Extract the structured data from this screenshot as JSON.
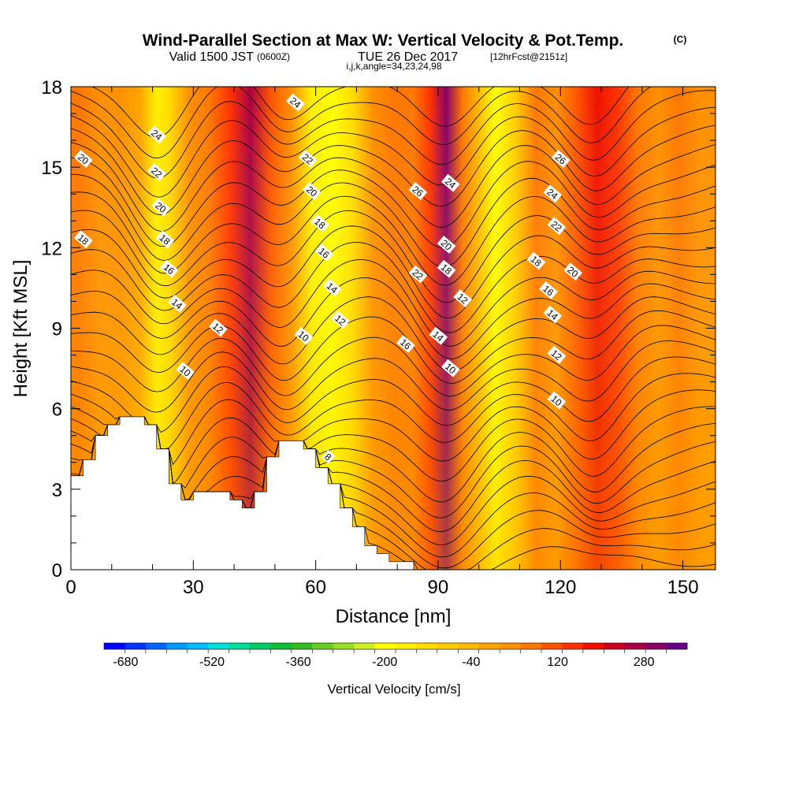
{
  "title": {
    "main": "Wind-Parallel Section at Max W: Vertical Velocity & Pot.Temp.",
    "copyright": "(C)",
    "line2_a": "Valid 1500 JST",
    "line2_b": "(0600Z)",
    "line2_c": "TUE 26 Dec 2017",
    "line2_d": "[12hrFcst@2151z]",
    "line3": "i,j,k,angle=34,23,24,98"
  },
  "chart_data": {
    "type": "heatmap",
    "xlabel": "Distance [nm]",
    "ylabel": "Height [Kft MSL]",
    "xlim": [
      0,
      158
    ],
    "ylim": [
      0,
      18
    ],
    "x_ticks": [
      "0",
      "30",
      "60",
      "90",
      "120",
      "150"
    ],
    "y_ticks": [
      "0",
      "3",
      "6",
      "9",
      "12",
      "15",
      "18"
    ],
    "x_tick_values": [
      0,
      30,
      60,
      90,
      120,
      150
    ],
    "y_tick_values": [
      0,
      3,
      6,
      9,
      12,
      15,
      18
    ],
    "colorbar": {
      "title": "Vertical Velocity [cm/s]",
      "labels": [
        "-680",
        "-520",
        "-360",
        "-200",
        "-40",
        "120",
        "280"
      ],
      "colors": [
        "#0000ff",
        "#0033ff",
        "#0066ff",
        "#0099ff",
        "#00bbff",
        "#00dddd",
        "#00dd99",
        "#00cc66",
        "#11bb33",
        "#33bb22",
        "#66cc22",
        "#99dd22",
        "#ccee22",
        "#ffff00",
        "#ffee00",
        "#ffdd00",
        "#ffcc00",
        "#ffbb00",
        "#ffa500",
        "#ff9000",
        "#ff7700",
        "#ff5500",
        "#ff3300",
        "#ee1100",
        "#cc0022",
        "#aa0044",
        "#880066",
        "#660088"
      ]
    },
    "velocity_columns": [
      {
        "x": 2,
        "value": 60
      },
      {
        "x": 7,
        "value": 20
      },
      {
        "x": 12,
        "value": 40
      },
      {
        "x": 17,
        "value": 0
      },
      {
        "x": 21,
        "value": -180
      },
      {
        "x": 24,
        "value": -120
      },
      {
        "x": 29,
        "value": 40
      },
      {
        "x": 34,
        "value": 80
      },
      {
        "x": 39,
        "value": 160
      },
      {
        "x": 44,
        "value": 260
      },
      {
        "x": 49,
        "value": 120
      },
      {
        "x": 54,
        "value": 20
      },
      {
        "x": 59,
        "value": -160
      },
      {
        "x": 64,
        "value": -200
      },
      {
        "x": 69,
        "value": -120
      },
      {
        "x": 74,
        "value": 20
      },
      {
        "x": 79,
        "value": 60
      },
      {
        "x": 84,
        "value": 80
      },
      {
        "x": 88,
        "value": 160
      },
      {
        "x": 92,
        "value": 300
      },
      {
        "x": 96,
        "value": 80
      },
      {
        "x": 100,
        "value": -40
      },
      {
        "x": 104,
        "value": -200
      },
      {
        "x": 109,
        "value": -80
      },
      {
        "x": 114,
        "value": 60
      },
      {
        "x": 119,
        "value": 20
      },
      {
        "x": 124,
        "value": 120
      },
      {
        "x": 129,
        "value": 200
      },
      {
        "x": 134,
        "value": 160
      },
      {
        "x": 139,
        "value": 60
      },
      {
        "x": 144,
        "value": 40
      },
      {
        "x": 149,
        "value": 60
      },
      {
        "x": 154,
        "value": 40
      }
    ],
    "terrain": [
      [
        0,
        3.5
      ],
      [
        3,
        3.5
      ],
      [
        3,
        4.1
      ],
      [
        6,
        4.1
      ],
      [
        6,
        5.0
      ],
      [
        9,
        5.0
      ],
      [
        9,
        5.4
      ],
      [
        12,
        5.4
      ],
      [
        12,
        5.7
      ],
      [
        18,
        5.7
      ],
      [
        18,
        5.4
      ],
      [
        21,
        5.4
      ],
      [
        21,
        4.5
      ],
      [
        24,
        4.5
      ],
      [
        24,
        3.2
      ],
      [
        27,
        3.2
      ],
      [
        27,
        2.6
      ],
      [
        30,
        2.6
      ],
      [
        30,
        2.9
      ],
      [
        39,
        2.9
      ],
      [
        39,
        2.6
      ],
      [
        42,
        2.6
      ],
      [
        42,
        2.3
      ],
      [
        45,
        2.3
      ],
      [
        45,
        2.9
      ],
      [
        48,
        2.9
      ],
      [
        48,
        4.2
      ],
      [
        51,
        4.2
      ],
      [
        51,
        4.8
      ],
      [
        57,
        4.8
      ],
      [
        57,
        4.5
      ],
      [
        60,
        4.5
      ],
      [
        60,
        3.8
      ],
      [
        63,
        3.8
      ],
      [
        63,
        3.2
      ],
      [
        66,
        3.2
      ],
      [
        66,
        2.3
      ],
      [
        69,
        2.3
      ],
      [
        69,
        1.6
      ],
      [
        72,
        1.6
      ],
      [
        72,
        0.9
      ],
      [
        75,
        0.9
      ],
      [
        75,
        0.6
      ],
      [
        78,
        0.6
      ],
      [
        78,
        0.3
      ],
      [
        84,
        0.3
      ],
      [
        84,
        0
      ]
    ],
    "contour_labels": [
      {
        "text": "24",
        "x": 21,
        "y": 16.2
      },
      {
        "text": "22",
        "x": 21,
        "y": 14.8
      },
      {
        "text": "20",
        "x": 22,
        "y": 13.5
      },
      {
        "text": "18",
        "x": 23,
        "y": 12.3
      },
      {
        "text": "16",
        "x": 24,
        "y": 11.2
      },
      {
        "text": "14",
        "x": 26,
        "y": 9.9
      },
      {
        "text": "12",
        "x": 36,
        "y": 9.0
      },
      {
        "text": "10",
        "x": 28,
        "y": 7.4
      },
      {
        "text": "20",
        "x": 3,
        "y": 15.3
      },
      {
        "text": "18",
        "x": 3,
        "y": 12.3
      },
      {
        "text": "24",
        "x": 55,
        "y": 17.4
      },
      {
        "text": "22",
        "x": 58,
        "y": 15.3
      },
      {
        "text": "20",
        "x": 59,
        "y": 14.1
      },
      {
        "text": "18",
        "x": 61,
        "y": 12.9
      },
      {
        "text": "16",
        "x": 62,
        "y": 11.8
      },
      {
        "text": "14",
        "x": 64,
        "y": 10.5
      },
      {
        "text": "12",
        "x": 66,
        "y": 9.3
      },
      {
        "text": "10",
        "x": 57,
        "y": 8.7
      },
      {
        "text": "8",
        "x": 63,
        "y": 4.2
      },
      {
        "text": "26",
        "x": 85,
        "y": 14.1
      },
      {
        "text": "24",
        "x": 93,
        "y": 14.4
      },
      {
        "text": "22",
        "x": 85,
        "y": 11.0
      },
      {
        "text": "20",
        "x": 92,
        "y": 12.1
      },
      {
        "text": "18",
        "x": 92,
        "y": 11.2
      },
      {
        "text": "16",
        "x": 82,
        "y": 8.4
      },
      {
        "text": "14",
        "x": 90,
        "y": 8.7
      },
      {
        "text": "12",
        "x": 96,
        "y": 10.1
      },
      {
        "text": "10",
        "x": 93,
        "y": 7.5
      },
      {
        "text": "26",
        "x": 120,
        "y": 15.3
      },
      {
        "text": "24",
        "x": 118,
        "y": 14.0
      },
      {
        "text": "22",
        "x": 119,
        "y": 12.8
      },
      {
        "text": "18",
        "x": 114,
        "y": 11.5
      },
      {
        "text": "20",
        "x": 123,
        "y": 11.1
      },
      {
        "text": "16",
        "x": 117,
        "y": 10.4
      },
      {
        "text": "14",
        "x": 118,
        "y": 9.5
      },
      {
        "text": "12",
        "x": 119,
        "y": 8.0
      },
      {
        "text": "10",
        "x": 119,
        "y": 6.3
      }
    ]
  }
}
